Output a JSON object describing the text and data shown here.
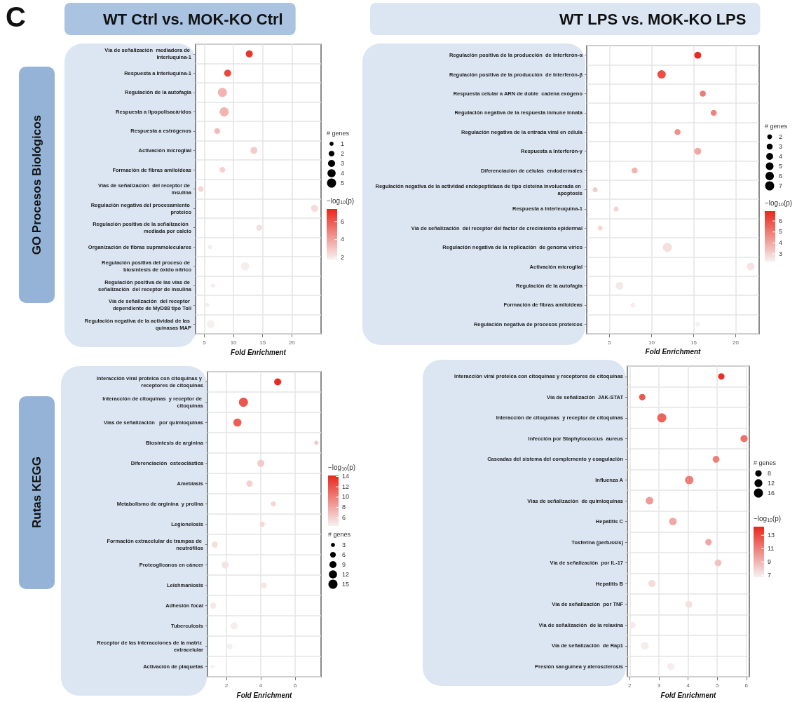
{
  "chart_data": [
    {
      "type": "bubble",
      "title": "WT Ctrl vs. MOK-KO Ctrl",
      "annotations": [
        "C",
        "GO Procesos Biológicos"
      ],
      "orientation": "horizontal",
      "categories": [
        "Vía de señalización  mediadora de Interluquina-1",
        "Respuesta a Interluquina-1",
        "Regulación de la autofagia",
        "Respuesta a lipopolisacáridos",
        "Respuesta a estrógenos",
        "Activación microglial",
        "Formación de fibras amiloideas",
        "Vías de señalización  del receptor de insulina",
        "Regulación negativa del procesamiento proteico",
        "Regulación positiva de la señalización  mediada por calcio",
        "Organización de fibras supramoleculares",
        "Regulación positiva del proceso de biosíntesis de óxido nítrico",
        "Regulación positiva de las vías de señalización  del receptor de insulina",
        "Vía de señalización  del receptor dependiente de MyD88 tipo Toll",
        "Regulación negativa de la actividad de las quinasas MAP"
      ],
      "values": [
        12.7,
        9.0,
        8.1,
        8.4,
        7.2,
        13.5,
        8.1,
        4.4,
        23.9,
        14.4,
        6.0,
        12.0,
        6.5,
        5.5,
        6.1
      ],
      "sizes": [
        3,
        3,
        5,
        5,
        2,
        3,
        2,
        2,
        3,
        2,
        1,
        4,
        1,
        1,
        4
      ],
      "size_legend": [
        1,
        2,
        3,
        4,
        5
      ],
      "legend_title": "# genes",
      "cvalues": [
        7.0,
        6.5,
        3.5,
        3.5,
        3.3,
        2.8,
        2.7,
        2.5,
        2.4,
        2.3,
        2.0,
        1.9,
        1.9,
        1.9,
        1.8
      ],
      "clim": [
        1.8,
        7.4
      ],
      "cticks": [
        2,
        4,
        6
      ],
      "clabel": "−log$_{10}$(p)",
      "xlabel": "Fold Enrichment",
      "xlim": [
        3.5,
        25
      ],
      "xticks": [
        5,
        10,
        15,
        20
      ],
      "grid": true
    },
    {
      "type": "bubble",
      "title": "WT LPS vs. MOK-KO LPS",
      "orientation": "horizontal",
      "categories": [
        "Regulación positiva de la producción  de Interferón-α",
        "Regulación positiva de la producción  de Interferón-β",
        "Respuesta celular a ARN de doble  cadena exógeno",
        "Regulación negativa de la respuesta inmune innata",
        "Regulación negativa de la entrada viral en célula",
        "Respuesta a Interferón-γ",
        "Diferenciación de células  endodermales",
        "Regulación negativa de la actividad endopeptidasa de tipo cisteína involucrada en apoptosis",
        "Respuesta a Interleuquina-1",
        "Vía de señalización  del receptor del factor de crecimiento epidermal",
        "Regulación negativa de la replicación  de genoma vírico",
        "Activación microglial",
        "Regulación de la autofagia",
        "Formación de fibras amiloideas",
        "Regulación negativa de procesos proteicos"
      ],
      "values": [
        15.5,
        11.2,
        16.1,
        17.4,
        13.1,
        15.5,
        8.0,
        3.3,
        5.8,
        3.9,
        11.9,
        21.8,
        6.2,
        7.8,
        15.5
      ],
      "sizes": [
        4,
        6,
        3,
        3,
        3,
        4,
        3,
        2,
        2,
        2,
        7,
        5,
        5,
        2,
        2
      ],
      "size_legend": [
        2,
        3,
        4,
        5,
        6,
        7
      ],
      "legend_title": "# genes",
      "cvalues": [
        6.8,
        6.0,
        5.0,
        4.8,
        4.5,
        4.0,
        3.7,
        3.2,
        3.0,
        2.9,
        2.7,
        2.6,
        2.5,
        2.4,
        2.3
      ],
      "clim": [
        2.3,
        6.9
      ],
      "cticks": [
        3,
        4,
        5,
        6
      ],
      "clabel": "−log$_{10}$(p)",
      "xlabel": "Fold Enrichment",
      "xlim": [
        2.3,
        22.8
      ],
      "xticks": [
        5,
        10,
        15,
        20
      ],
      "grid": true
    },
    {
      "type": "bubble",
      "annotations": [
        "Rutas KEGG"
      ],
      "orientation": "horizontal",
      "categories": [
        "Interacción viral proteica con citoquinas y receptores de citoquinas",
        "Interacción de citoquinas  y receptor de citoquinas",
        "Vías de señalización   por quimioquinas",
        "Biosíntesis de arginina",
        "Diferenciación  osteoclástica",
        "Amebiasis",
        "Metabolismo de arginina  y prolina",
        "Legionelosis",
        "Formación extracelular de trampas de neutrófilos",
        "Proteoglicanos en cáncer",
        "Leishmaniosis",
        "Adhesión focal",
        "Tuberculosis",
        "Receptor de las interacciones de la matriz extracelular",
        "Activación de plaquetas"
      ],
      "values": [
        4.98,
        2.99,
        2.64,
        7.22,
        4.0,
        3.34,
        4.73,
        4.08,
        1.32,
        1.93,
        4.18,
        1.23,
        2.45,
        2.19,
        1.19
      ],
      "sizes": [
        9,
        15,
        12,
        3,
        9,
        7,
        5,
        5,
        7,
        9,
        6,
        7,
        9,
        6,
        3
      ],
      "size_legend": [
        3,
        6,
        9,
        12,
        15
      ],
      "legend_title": "# genes",
      "cvalues": [
        14,
        12,
        11.5,
        6.5,
        6.3,
        6.0,
        5.7,
        5.5,
        5.3,
        5.1,
        5.0,
        4.8,
        4.6,
        4.5,
        4.4
      ],
      "clim": [
        4.4,
        14.2
      ],
      "cticks": [
        6,
        8,
        10,
        12,
        14
      ],
      "clabel": "−log$_{10}$(p)",
      "xlabel": "Fold Enrichment",
      "xlim": [
        0.9,
        7.5
      ],
      "xticks": [
        2,
        4,
        6
      ],
      "grid": true
    },
    {
      "type": "bubble",
      "orientation": "horizontal",
      "categories": [
        "Interacción viral proteica con citoquinas y receptores de citoquinas",
        "Vía de señalización  JAK-STAT",
        "Interacción de citoquinas  y receptor de citoquinas",
        "Infección por Staphylococcus  aureus",
        "Cascadas del sistema del complemento y coagulación",
        "Influenza A",
        "Vías de señalización  de quimioquinas",
        "Hepatitis C",
        "Tosferina (pertussis)",
        "Vía de señalización  por IL-17",
        "Hepatitis B",
        "Vía de señalización  por TNF",
        "Vía de señalización  de la relaxina",
        "Vía de señalización  de Rap1",
        "Presión sanguínea y aterosclerosis"
      ],
      "values": [
        5.14,
        2.43,
        3.1,
        5.92,
        4.96,
        4.04,
        2.68,
        3.48,
        4.7,
        5.03,
        2.76,
        4.03,
        2.1,
        2.52,
        3.41
      ],
      "sizes": [
        8,
        8,
        16,
        10,
        9,
        14,
        11,
        11,
        8,
        9,
        10,
        9,
        7,
        11,
        10
      ],
      "size_legend": [
        8,
        12,
        16
      ],
      "legend_title": "# genes",
      "cvalues": [
        14,
        12.5,
        12,
        11.5,
        11,
        11,
        10,
        9.5,
        9.5,
        8.5,
        7.5,
        7.3,
        7.0,
        6.9,
        6.8
      ],
      "clim": [
        6.7,
        14.3
      ],
      "cticks": [
        7,
        9,
        11,
        13
      ],
      "clabel": "−log$_{10}$(p)",
      "xlabel": "Fold Enrichment",
      "xlim": [
        1.92,
        6.1
      ],
      "xticks": [
        2,
        3,
        4,
        5,
        6
      ],
      "grid": true
    }
  ]
}
